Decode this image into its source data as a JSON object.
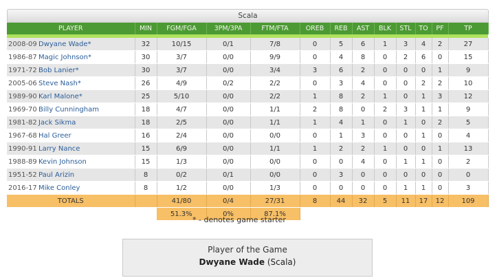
{
  "team_tab": "Scala",
  "columns": [
    "PLAYER",
    "MIN",
    "FGM/FGA",
    "3PM/3PA",
    "FTM/FTA",
    "OREB",
    "REB",
    "AST",
    "BLK",
    "STL",
    "TO",
    "PF",
    "TP"
  ],
  "rows": [
    {
      "season": "2008-09",
      "player": "Dwyane Wade*",
      "min": "32",
      "fg": "10/15",
      "tp3": "0/1",
      "ft": "7/8",
      "oreb": "0",
      "reb": "5",
      "ast": "6",
      "blk": "1",
      "stl": "3",
      "to": "4",
      "pf": "2",
      "pts": "27"
    },
    {
      "season": "1986-87",
      "player": "Magic Johnson*",
      "min": "30",
      "fg": "3/7",
      "tp3": "0/0",
      "ft": "9/9",
      "oreb": "0",
      "reb": "4",
      "ast": "8",
      "blk": "0",
      "stl": "2",
      "to": "6",
      "pf": "0",
      "pts": "15"
    },
    {
      "season": "1971-72",
      "player": "Bob Lanier*",
      "min": "30",
      "fg": "3/7",
      "tp3": "0/0",
      "ft": "3/4",
      "oreb": "3",
      "reb": "6",
      "ast": "2",
      "blk": "0",
      "stl": "0",
      "to": "0",
      "pf": "1",
      "pts": "9"
    },
    {
      "season": "2005-06",
      "player": "Steve Nash*",
      "min": "26",
      "fg": "4/9",
      "tp3": "0/2",
      "ft": "2/2",
      "oreb": "0",
      "reb": "3",
      "ast": "4",
      "blk": "0",
      "stl": "0",
      "to": "2",
      "pf": "2",
      "pts": "10"
    },
    {
      "season": "1989-90",
      "player": "Karl Malone*",
      "min": "25",
      "fg": "5/10",
      "tp3": "0/0",
      "ft": "2/2",
      "oreb": "1",
      "reb": "8",
      "ast": "2",
      "blk": "1",
      "stl": "0",
      "to": "1",
      "pf": "3",
      "pts": "12"
    },
    {
      "season": "1969-70",
      "player": "Billy Cunningham",
      "min": "18",
      "fg": "4/7",
      "tp3": "0/0",
      "ft": "1/1",
      "oreb": "2",
      "reb": "8",
      "ast": "0",
      "blk": "2",
      "stl": "3",
      "to": "1",
      "pf": "1",
      "pts": "9"
    },
    {
      "season": "1981-82",
      "player": "Jack Sikma",
      "min": "18",
      "fg": "2/5",
      "tp3": "0/0",
      "ft": "1/1",
      "oreb": "1",
      "reb": "4",
      "ast": "1",
      "blk": "0",
      "stl": "1",
      "to": "0",
      "pf": "2",
      "pts": "5"
    },
    {
      "season": "1967-68",
      "player": "Hal Greer",
      "min": "16",
      "fg": "2/4",
      "tp3": "0/0",
      "ft": "0/0",
      "oreb": "0",
      "reb": "1",
      "ast": "3",
      "blk": "0",
      "stl": "0",
      "to": "1",
      "pf": "0",
      "pts": "4"
    },
    {
      "season": "1990-91",
      "player": "Larry Nance",
      "min": "15",
      "fg": "6/9",
      "tp3": "0/0",
      "ft": "1/1",
      "oreb": "1",
      "reb": "2",
      "ast": "2",
      "blk": "1",
      "stl": "0",
      "to": "0",
      "pf": "1",
      "pts": "13"
    },
    {
      "season": "1988-89",
      "player": "Kevin Johnson",
      "min": "15",
      "fg": "1/3",
      "tp3": "0/0",
      "ft": "0/0",
      "oreb": "0",
      "reb": "0",
      "ast": "4",
      "blk": "0",
      "stl": "1",
      "to": "1",
      "pf": "0",
      "pts": "2"
    },
    {
      "season": "1951-52",
      "player": "Paul Arizin",
      "min": "8",
      "fg": "0/2",
      "tp3": "0/1",
      "ft": "0/0",
      "oreb": "0",
      "reb": "3",
      "ast": "0",
      "blk": "0",
      "stl": "0",
      "to": "0",
      "pf": "0",
      "pts": "0"
    },
    {
      "season": "2016-17",
      "player": "Mike Conley",
      "min": "8",
      "fg": "1/2",
      "tp3": "0/0",
      "ft": "1/3",
      "oreb": "0",
      "reb": "0",
      "ast": "0",
      "blk": "0",
      "stl": "1",
      "to": "1",
      "pf": "0",
      "pts": "3"
    }
  ],
  "totals": {
    "label": "TOTALS",
    "min": "",
    "fg": "41/80",
    "tp3": "0/4",
    "ft": "27/31",
    "oreb": "8",
    "reb": "44",
    "ast": "32",
    "blk": "5",
    "stl": "11",
    "to": "17",
    "pf": "12",
    "pts": "109"
  },
  "percentages": {
    "fg": "51.3%",
    "tp3": "0%",
    "ft": "87.1%"
  },
  "footnote": "* - denotes game starter",
  "player_of_game": {
    "title": "Player of the Game",
    "name": "Dwyane Wade",
    "team": "(Scala)"
  },
  "colors": {
    "header_green": "#4c9a33",
    "stripe_green": "#aee25c",
    "totals_orange": "#f7bf66",
    "link_blue": "#2a5d9a"
  }
}
